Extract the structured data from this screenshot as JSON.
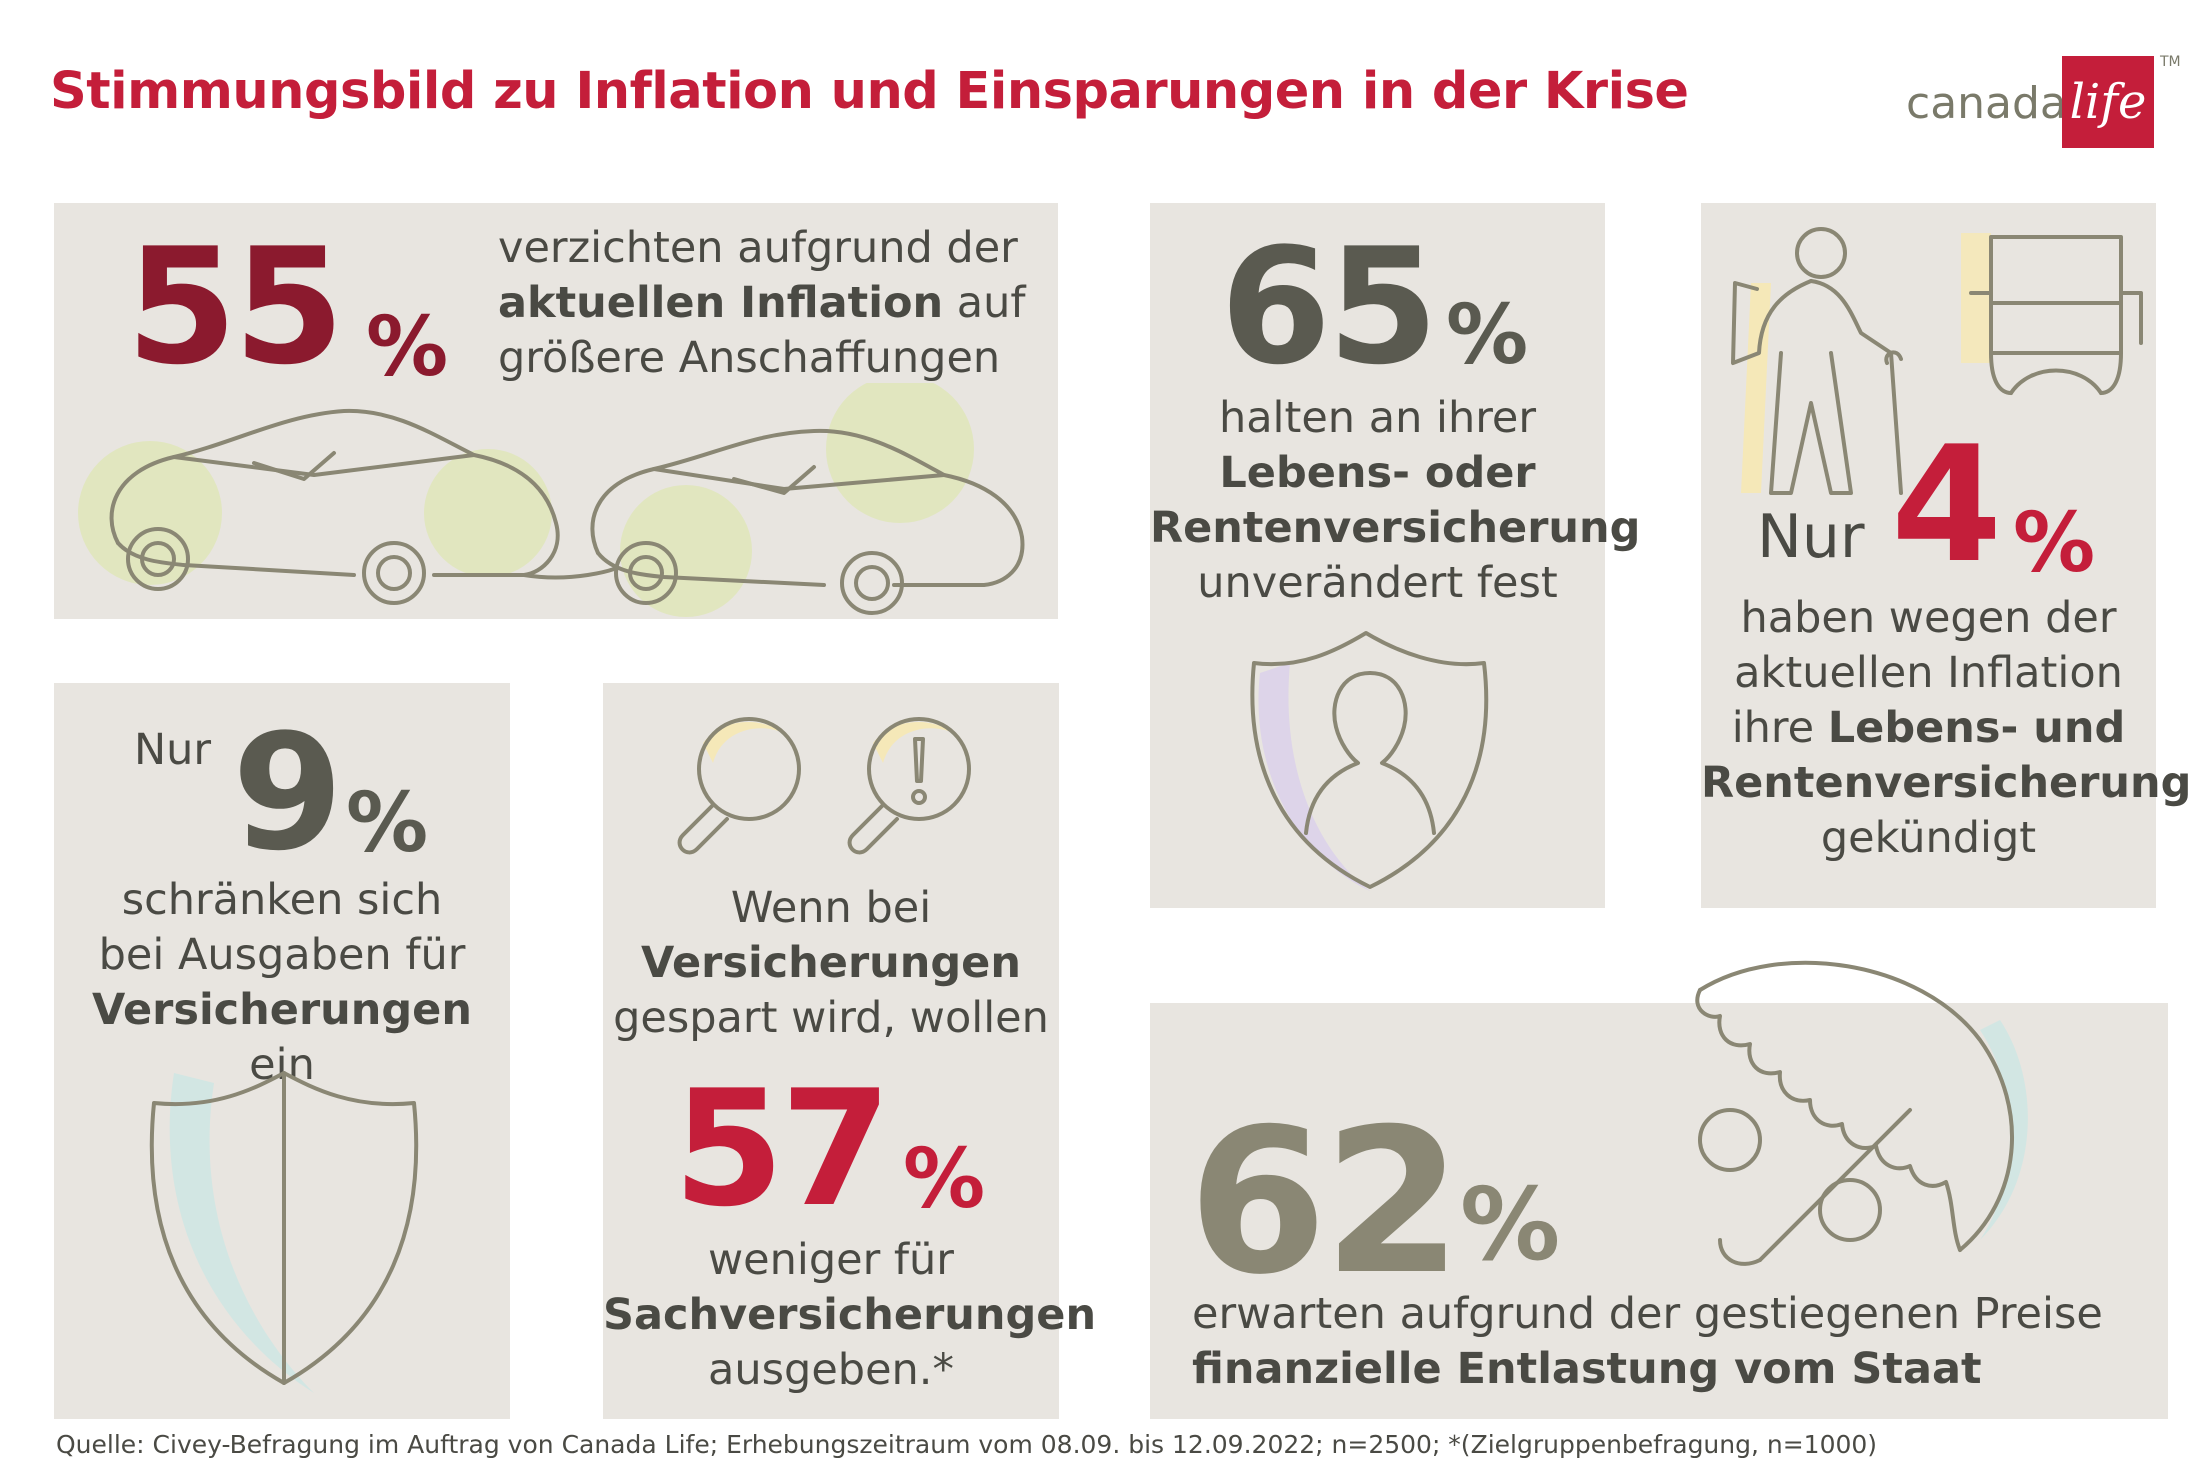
{
  "title": "Stimmungsbild zu Inflation und Einsparungen in der Krise",
  "logo": {
    "text": "canada",
    "box_text": "life",
    "tm": "TM"
  },
  "panels": {
    "p55": {
      "value": "55",
      "unit": "%",
      "line1": "verzichten aufgrund der",
      "line2_bold": "aktuellen Inflation",
      "line2_rest": " auf",
      "line3": "größere Anschaffungen"
    },
    "p65": {
      "value": "65",
      "unit": "%",
      "line1": "halten an ihrer",
      "line2_bold": "Lebens- oder",
      "line3_bold": "Rentenversicherung",
      "line4": "unverändert fest"
    },
    "p4": {
      "prefix": "Nur",
      "value": "4",
      "unit": "%",
      "line1": "haben wegen der",
      "line2": "aktuellen Inflation",
      "line3_pre": "ihre ",
      "line3_bold": "Lebens- und",
      "line4_bold": "Rentenversicherung",
      "line5": "gekündigt"
    },
    "p9": {
      "prefix": "Nur",
      "value": "9",
      "unit": "%",
      "line1": "schränken sich",
      "line2": "bei Ausgaben für",
      "line3_bold": "Versicherungen",
      "line3_rest": " ein"
    },
    "p57": {
      "line1": "Wenn bei",
      "line2_bold": "Versicherungen",
      "line3": "gespart wird, wollen",
      "value": "57",
      "unit": "%",
      "line4": "weniger für",
      "line5_bold": "Sachversicherungen",
      "line6": "ausgeben.*"
    },
    "p62": {
      "value": "62",
      "unit": "%",
      "line1": "erwarten aufgrund der gestiegenen Preise",
      "line2_bold": "finanzielle Entlastung vom Staat"
    }
  },
  "icons": [
    "car-icon",
    "elderly-person-icon",
    "armchair-icon",
    "person-shield-icon",
    "shield-icon",
    "magnifier-icon",
    "magnifier-exclamation-icon",
    "umbrella-percent-icon"
  ],
  "colors": {
    "accent": "#c41e3a",
    "panel": "#e8e5e0",
    "dark_red": "#8b1a2e",
    "gray_number": "#5a5a50",
    "olive_number": "#8a8774"
  },
  "source": "Quelle: Civey-Befragung im Auftrag von Canada Life; Erhebungszeitraum vom 08.09. bis 12.09.2022; n=2500; *(Zielgruppenbefragung, n=1000)"
}
